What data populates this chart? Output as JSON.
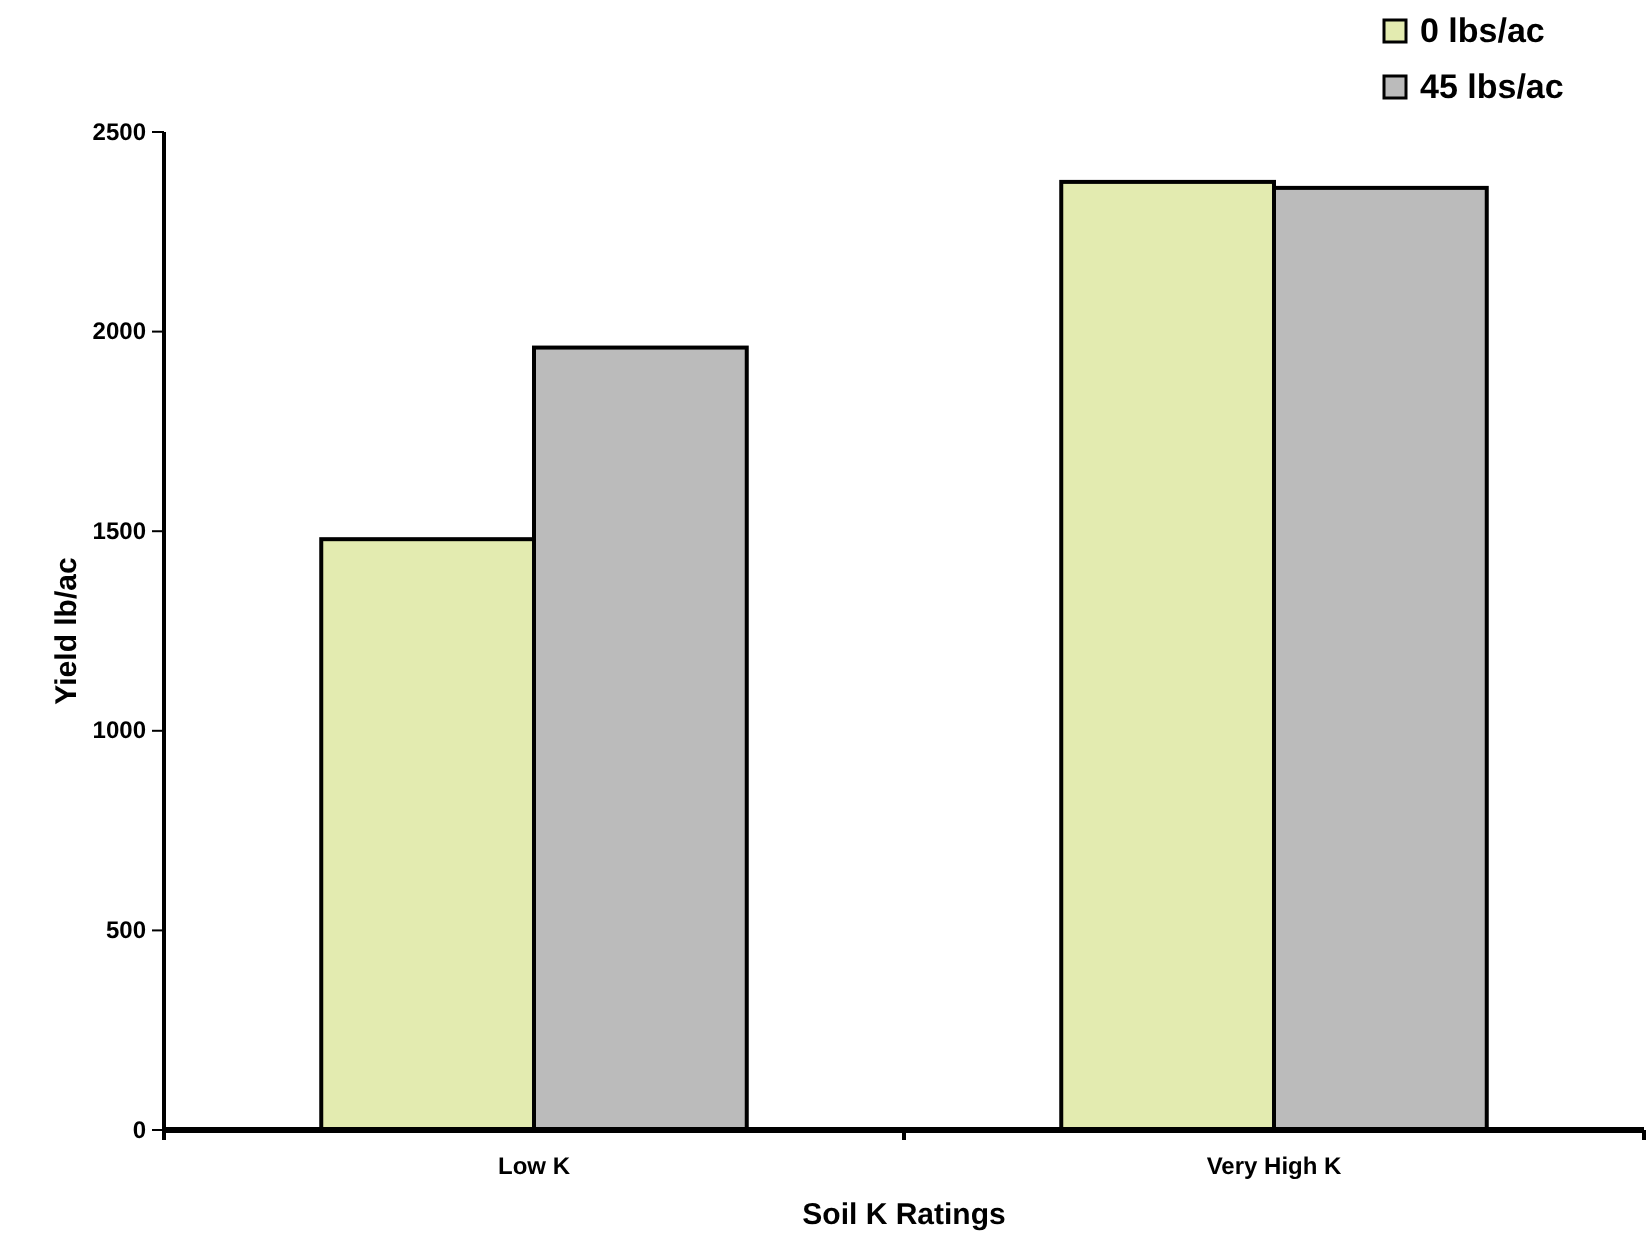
{
  "chart_data": {
    "type": "bar",
    "xlabel": "Soil K Ratings",
    "ylabel": "Yield lb/ac",
    "categories": [
      "Low K",
      "Very High K"
    ],
    "series": [
      {
        "name": "0 lbs/ac",
        "color": "#e3ebb0",
        "values": [
          1480,
          2375
        ]
      },
      {
        "name": "45 lbs/ac",
        "color": "#bbbbbb",
        "values": [
          1960,
          2360
        ]
      }
    ],
    "ylim": [
      0,
      2500
    ],
    "yticks": [
      0,
      500,
      1000,
      1500,
      2000,
      2500
    ],
    "grid": false,
    "legend": "top right"
  }
}
